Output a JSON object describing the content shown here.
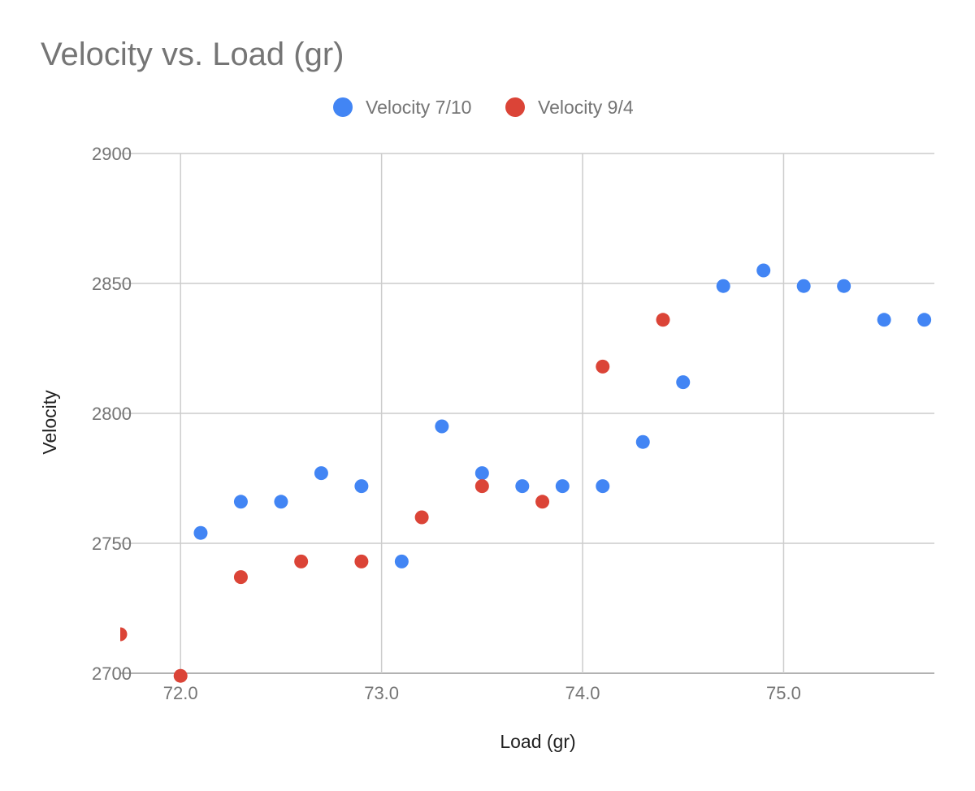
{
  "chart_data": {
    "type": "scatter",
    "title": "Velocity vs. Load (gr)",
    "xlabel": "Load (gr)",
    "ylabel": "Velocity",
    "xlim": [
      71.7,
      75.75
    ],
    "ylim": [
      2700,
      2900
    ],
    "x_ticks": [
      72.0,
      73.0,
      74.0,
      75.0
    ],
    "x_tick_labels": [
      "72.0",
      "73.0",
      "74.0",
      "75.0"
    ],
    "y_ticks": [
      2700,
      2750,
      2800,
      2850,
      2900
    ],
    "y_tick_labels": [
      "2700",
      "2750",
      "2800",
      "2850",
      "2900"
    ],
    "grid": true,
    "legend_position": "top",
    "series": [
      {
        "name": "Velocity 7/10",
        "color": "#4285F4",
        "points": [
          {
            "x": 72.1,
            "y": 2754
          },
          {
            "x": 72.3,
            "y": 2766
          },
          {
            "x": 72.5,
            "y": 2766
          },
          {
            "x": 72.7,
            "y": 2777
          },
          {
            "x": 72.9,
            "y": 2772
          },
          {
            "x": 73.1,
            "y": 2743
          },
          {
            "x": 73.3,
            "y": 2795
          },
          {
            "x": 73.5,
            "y": 2777
          },
          {
            "x": 73.7,
            "y": 2772
          },
          {
            "x": 73.9,
            "y": 2772
          },
          {
            "x": 74.1,
            "y": 2772
          },
          {
            "x": 74.3,
            "y": 2789
          },
          {
            "x": 74.5,
            "y": 2812
          },
          {
            "x": 74.7,
            "y": 2849
          },
          {
            "x": 74.9,
            "y": 2855
          },
          {
            "x": 75.1,
            "y": 2849
          },
          {
            "x": 75.3,
            "y": 2849
          },
          {
            "x": 75.5,
            "y": 2836
          },
          {
            "x": 75.7,
            "y": 2836
          }
        ]
      },
      {
        "name": "Velocity 9/4",
        "color": "#DB4437",
        "points": [
          {
            "x": 71.7,
            "y": 2715
          },
          {
            "x": 72.0,
            "y": 2699
          },
          {
            "x": 72.3,
            "y": 2737
          },
          {
            "x": 72.6,
            "y": 2743
          },
          {
            "x": 72.9,
            "y": 2743
          },
          {
            "x": 73.2,
            "y": 2760
          },
          {
            "x": 73.5,
            "y": 2772
          },
          {
            "x": 73.8,
            "y": 2766
          },
          {
            "x": 74.1,
            "y": 2818
          },
          {
            "x": 74.4,
            "y": 2836
          }
        ]
      }
    ]
  }
}
